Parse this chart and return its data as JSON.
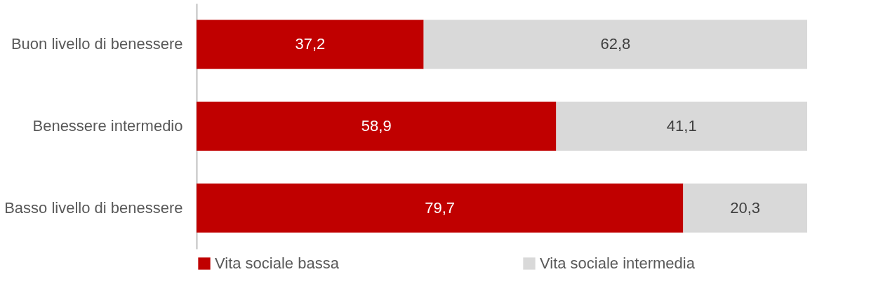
{
  "chart_data": {
    "type": "bar",
    "orientation": "horizontal",
    "stacked": true,
    "categories": [
      "Buon livello di benessere",
      "Benessere intermedio",
      "Basso livello di benessere"
    ],
    "series": [
      {
        "name": "Vita sociale bassa",
        "color": "#c00000",
        "values": [
          37.2,
          58.9,
          79.7
        ],
        "value_labels": [
          "37,2",
          "58,9",
          "79,7"
        ]
      },
      {
        "name": "Vita sociale intermedia",
        "color": "#d9d9d9",
        "values": [
          62.8,
          41.1,
          20.3
        ],
        "value_labels": [
          "62,8",
          "41,1",
          "20,3"
        ]
      }
    ],
    "xlim": [
      0,
      100
    ],
    "tick_labels": "y",
    "legend": "bottom"
  }
}
